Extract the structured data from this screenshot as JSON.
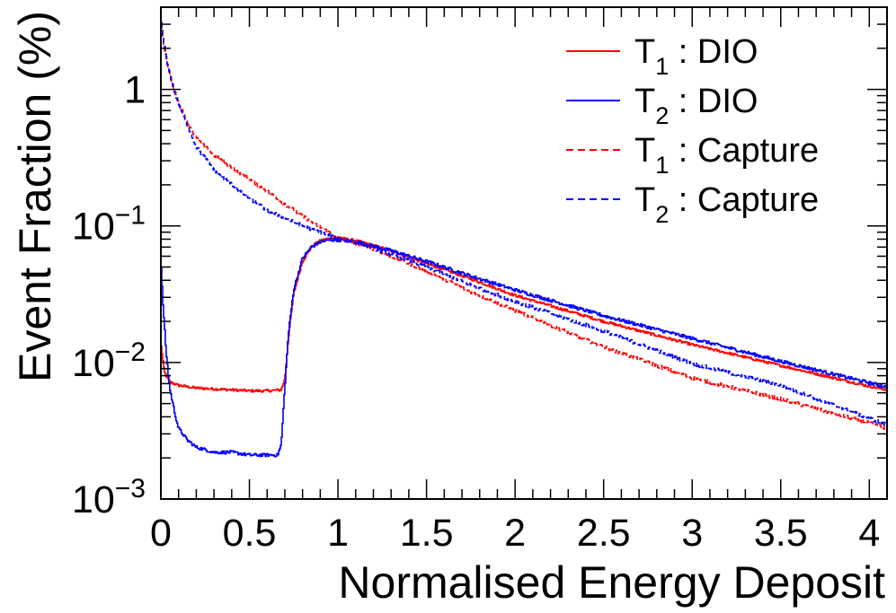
{
  "chart_data": {
    "type": "line",
    "title": "",
    "xlabel": "Normalised Energy Deposit",
    "ylabel": "Event Fraction (%)",
    "xlim": [
      0,
      4.1
    ],
    "ylim": [
      0.001,
      4.0
    ],
    "yscale": "log",
    "grid": false,
    "legend_position": "top-right",
    "x_ticks": [
      0,
      0.5,
      1,
      1.5,
      2,
      2.5,
      3,
      3.5,
      4
    ],
    "x_tick_labels": [
      "0",
      "0.5",
      "1",
      "1.5",
      "2",
      "2.5",
      "3",
      "3.5",
      "4"
    ],
    "y_ticks": [
      {
        "value": 0.001,
        "base": "10",
        "exp": "−3"
      },
      {
        "value": 0.01,
        "base": "10",
        "exp": "−2"
      },
      {
        "value": 0.1,
        "base": "10",
        "exp": "−1"
      },
      {
        "value": 1,
        "base": "1",
        "exp": ""
      }
    ],
    "series": [
      {
        "name": "T1 : DIO",
        "label_main": "T",
        "label_sub": "1",
        "label_rest": " : DIO",
        "color": "#ff0000",
        "dash": "solid",
        "x": [
          0.0,
          0.02,
          0.05,
          0.1,
          0.2,
          0.3,
          0.4,
          0.5,
          0.6,
          0.68,
          0.7,
          0.72,
          0.75,
          0.8,
          0.85,
          0.9,
          0.95,
          1.0,
          1.1,
          1.2,
          1.3,
          1.5,
          1.75,
          2.0,
          2.5,
          3.0,
          3.5,
          4.0,
          4.1
        ],
        "y": [
          0.014,
          0.0085,
          0.0072,
          0.0068,
          0.0065,
          0.0064,
          0.0063,
          0.0062,
          0.0062,
          0.0063,
          0.0075,
          0.015,
          0.032,
          0.055,
          0.07,
          0.078,
          0.081,
          0.082,
          0.078,
          0.072,
          0.066,
          0.053,
          0.041,
          0.031,
          0.02,
          0.0135,
          0.0095,
          0.0067,
          0.0063
        ],
        "jitter": 0.022
      },
      {
        "name": "T2 : DIO",
        "label_main": "T",
        "label_sub": "2",
        "label_rest": " : DIO",
        "color": "#0000ff",
        "dash": "solid",
        "x": [
          0.0,
          0.01,
          0.03,
          0.05,
          0.08,
          0.1,
          0.15,
          0.2,
          0.3,
          0.4,
          0.5,
          0.6,
          0.66,
          0.68,
          0.7,
          0.72,
          0.75,
          0.8,
          0.85,
          0.9,
          0.95,
          1.0,
          1.1,
          1.2,
          1.3,
          1.5,
          1.75,
          2.0,
          2.5,
          3.0,
          3.5,
          4.0,
          4.1
        ],
        "y": [
          0.058,
          0.03,
          0.012,
          0.0065,
          0.0042,
          0.0033,
          0.0027,
          0.0024,
          0.0022,
          0.0022,
          0.0021,
          0.0021,
          0.0021,
          0.0025,
          0.0065,
          0.016,
          0.034,
          0.058,
          0.07,
          0.076,
          0.079,
          0.079,
          0.077,
          0.071,
          0.066,
          0.055,
          0.043,
          0.034,
          0.022,
          0.015,
          0.0102,
          0.0071,
          0.0066
        ],
        "jitter": 0.028
      },
      {
        "name": "T1 : Capture",
        "label_main": "T",
        "label_sub": "1",
        "label_rest": " : Capture",
        "color": "#ff0000",
        "dash": "dashed",
        "x": [
          0.0,
          0.01,
          0.03,
          0.05,
          0.08,
          0.1,
          0.15,
          0.2,
          0.3,
          0.4,
          0.5,
          0.6,
          0.7,
          0.8,
          0.9,
          1.0,
          1.1,
          1.2,
          1.5,
          1.75,
          2.0,
          2.5,
          3.0,
          3.5,
          4.0,
          4.1
        ],
        "y": [
          3.2,
          2.4,
          1.7,
          1.3,
          0.95,
          0.8,
          0.58,
          0.44,
          0.33,
          0.27,
          0.22,
          0.18,
          0.145,
          0.118,
          0.098,
          0.082,
          0.075,
          0.068,
          0.047,
          0.033,
          0.024,
          0.013,
          0.0077,
          0.0054,
          0.0036,
          0.0033
        ],
        "jitter": 0.03
      },
      {
        "name": "T2 : Capture",
        "label_main": "T",
        "label_sub": "2",
        "label_rest": " : Capture",
        "color": "#0000ff",
        "dash": "dashed",
        "x": [
          0.0,
          0.01,
          0.03,
          0.05,
          0.08,
          0.1,
          0.15,
          0.2,
          0.3,
          0.4,
          0.5,
          0.6,
          0.7,
          0.8,
          0.9,
          1.0,
          1.1,
          1.2,
          1.5,
          1.75,
          2.0,
          2.5,
          3.0,
          3.5,
          4.0,
          4.1
        ],
        "y": [
          3.3,
          2.5,
          1.75,
          1.3,
          0.95,
          0.78,
          0.55,
          0.38,
          0.26,
          0.2,
          0.16,
          0.13,
          0.115,
          0.1,
          0.09,
          0.081,
          0.075,
          0.069,
          0.05,
          0.037,
          0.028,
          0.017,
          0.0098,
          0.0068,
          0.0039,
          0.0035
        ],
        "jitter": 0.03
      }
    ]
  }
}
